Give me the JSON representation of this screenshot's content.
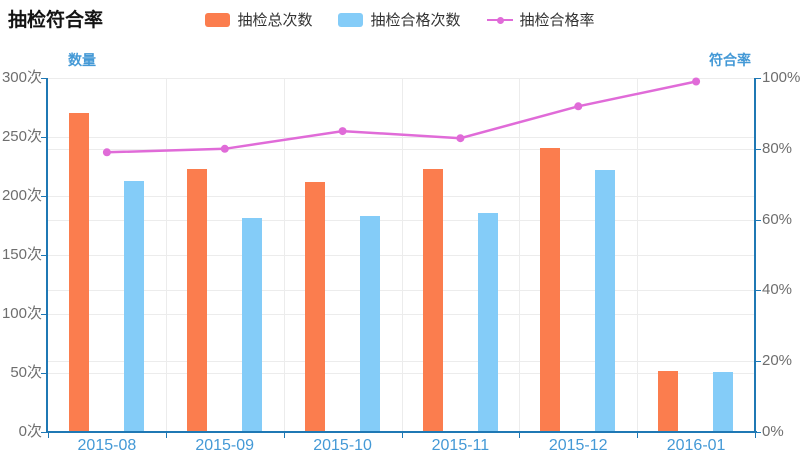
{
  "title": "抽检符合率",
  "colors": {
    "total_bar": "#FB7D4E",
    "qualified_bar": "#84CCF8",
    "rate_line": "#E06BD8",
    "axis_line": "#1F78B4",
    "axis_label_blue": "#4499D6",
    "tick_label_gray": "#6E6E6E",
    "grid_line": "#ECECEC",
    "legend_text": "#333333",
    "title_text": "#141414"
  },
  "legend": [
    {
      "label": "抽检总次数",
      "marker": "bar",
      "color_key": "total_bar"
    },
    {
      "label": "抽检合格次数",
      "marker": "bar",
      "color_key": "qualified_bar"
    },
    {
      "label": "抽检合格率",
      "marker": "line",
      "color_key": "rate_line"
    }
  ],
  "axes": {
    "left": {
      "name": "数量",
      "ticks": [
        "300次",
        "250次",
        "200次",
        "150次",
        "100次",
        "50次",
        "0次"
      ],
      "max": 300
    },
    "right": {
      "name": "符合率",
      "ticks": [
        "100%",
        "80%",
        "60%",
        "40%",
        "20%",
        "0%"
      ],
      "max": 100
    },
    "x": {
      "categories": [
        "2015-08",
        "2015-09",
        "2015-10",
        "2015-11",
        "2015-12",
        "2016-01"
      ]
    }
  },
  "chart_data": {
    "type": "bar",
    "title": "抽检符合率",
    "categories": [
      "2015-08",
      "2015-09",
      "2015-10",
      "2015-11",
      "2015-12",
      "2016-01"
    ],
    "series": [
      {
        "name": "抽检总次数",
        "type": "bar",
        "axis": "left",
        "values": [
          270,
          223,
          212,
          223,
          241,
          52
        ]
      },
      {
        "name": "抽检合格次数",
        "type": "bar",
        "axis": "left",
        "values": [
          213,
          181,
          183,
          186,
          222,
          51
        ]
      },
      {
        "name": "抽检合格率",
        "type": "line",
        "axis": "right",
        "values": [
          79,
          80,
          85,
          83,
          92,
          99
        ]
      }
    ],
    "ylabel_left": "数量",
    "ylabel_right": "符合率",
    "ylim_left": [
      0,
      300
    ],
    "ylim_right": [
      0,
      100
    ],
    "grid": true,
    "legend_position": "top"
  }
}
